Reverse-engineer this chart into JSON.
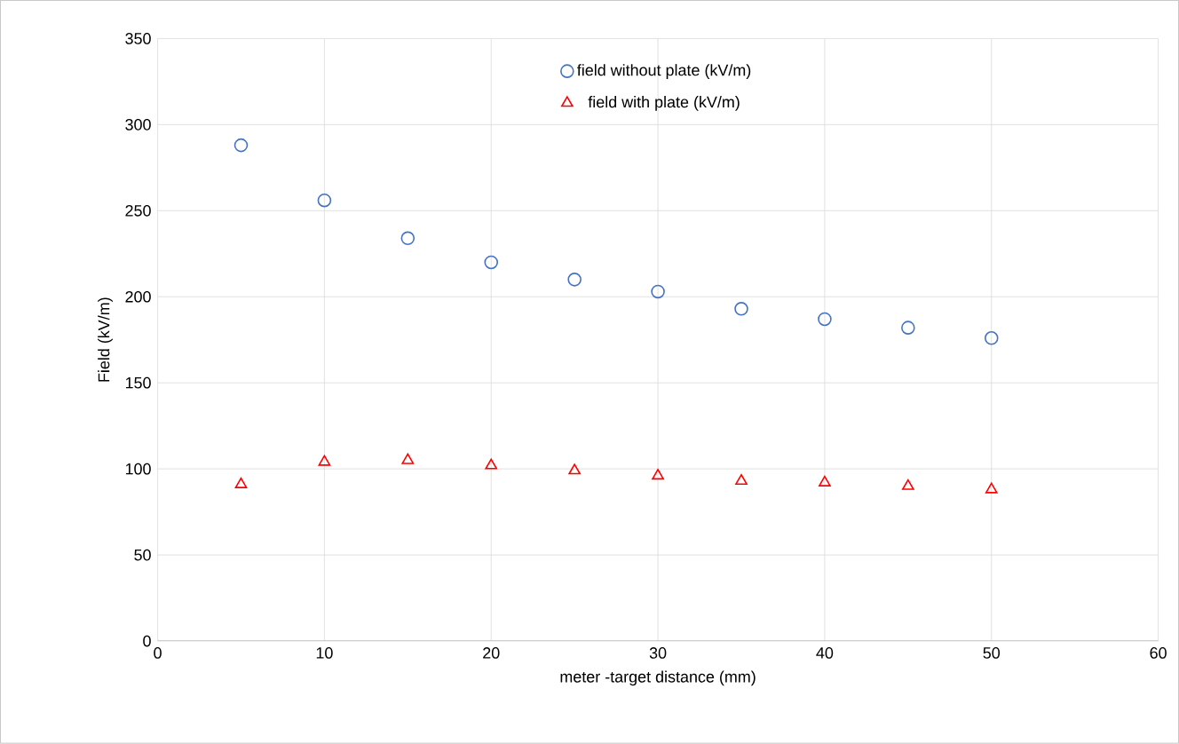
{
  "chart_data": {
    "type": "scatter",
    "xlabel": "meter -target distance (mm)",
    "ylabel": "Field (kV/m)",
    "x": [
      5,
      10,
      15,
      20,
      25,
      30,
      35,
      40,
      45,
      50
    ],
    "series": [
      {
        "name": "field without plate (kV/m)",
        "color": "#4472c4",
        "marker": "circle",
        "values": [
          288,
          256,
          234,
          220,
          210,
          203,
          193,
          187,
          182,
          176
        ]
      },
      {
        "name": "field with plate (kV/m)",
        "color": "#ff0000",
        "marker": "triangle",
        "values": [
          91,
          104,
          105,
          102,
          99,
          96,
          93,
          92,
          90,
          88
        ]
      }
    ],
    "xlim": [
      0,
      60
    ],
    "xticks": [
      0,
      10,
      20,
      30,
      40,
      50,
      60
    ],
    "ylim": [
      0,
      350
    ],
    "yticks": [
      0,
      50,
      100,
      150,
      200,
      250,
      300,
      350
    ],
    "grid": true,
    "legend": "top"
  }
}
